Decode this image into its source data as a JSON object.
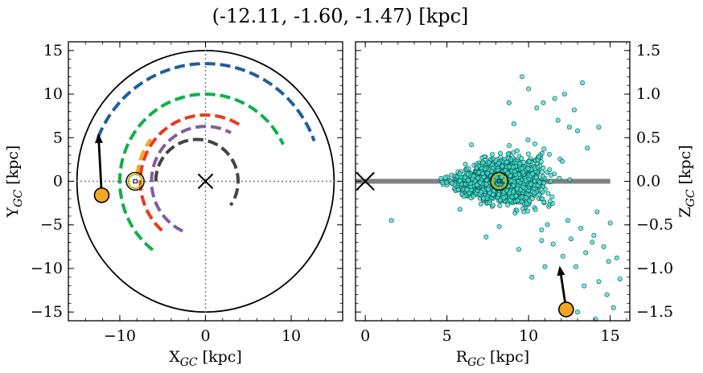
{
  "title": "(-12.11, -1.60, -1.47) [kpc]",
  "colors": {
    "blue": "#1f5f9e",
    "green": "#0fb04a",
    "orange": "#f5a623",
    "red": "#e8391a",
    "purple": "#7e5ea0",
    "dark": "#444444",
    "scatter_fill": "#40e0d0",
    "marker": "#f5a623"
  },
  "chart_data": [
    {
      "type": "line",
      "panel": "left",
      "xlabel_main": "X",
      "xlabel_sub": "GC",
      "xlabel_unit": " [kpc]",
      "ylabel_main": "Y",
      "ylabel_sub": "GC",
      "ylabel_unit": " [kpc]",
      "xlim": [
        -16,
        16
      ],
      "ylim": [
        -16,
        16
      ],
      "xticks": [
        -10,
        0,
        10
      ],
      "xtick_labels": [
        "−10",
        "0",
        "10"
      ],
      "yticks": [
        -15,
        -10,
        -5,
        0,
        5,
        10,
        15
      ],
      "ytick_labels": [
        "−15",
        "−10",
        "−5",
        "0",
        "5",
        "10",
        "15"
      ],
      "boundary_radius": 15,
      "crosshair_lines": {
        "x": 0,
        "y": 0
      },
      "center_marker": {
        "x": 0,
        "y": 0
      },
      "sun_marker": {
        "x": -8.2,
        "y": 0
      },
      "object": {
        "x": -12.11,
        "y": -1.6,
        "arrow_to": [
          -12.5,
          5.5
        ]
      },
      "arcs": [
        {
          "color_key": "blue",
          "radius": 13.5,
          "start_deg": 158,
          "end_deg": 20
        },
        {
          "color_key": "green",
          "radius": 10.0,
          "start_deg": 232,
          "end_deg": 25
        },
        {
          "color_key": "orange",
          "radius": 8.0,
          "start_deg": 175,
          "end_deg": 143
        },
        {
          "color_key": "red",
          "radius": 7.6,
          "start_deg": 228,
          "end_deg": 55
        },
        {
          "color_key": "purple",
          "radius": 6.3,
          "start_deg": 245,
          "end_deg": 62
        },
        {
          "color_key": "dark",
          "radius": 4.8,
          "start_deg": 180,
          "end_deg": -35,
          "cx": -1.0,
          "cy": 0
        }
      ]
    },
    {
      "type": "scatter",
      "panel": "right",
      "xlabel_main": "R",
      "xlabel_sub": "GC",
      "xlabel_unit": " [kpc]",
      "ylabel_main": "Z",
      "ylabel_sub": "GC",
      "ylabel_unit": " [kpc]",
      "xlim": [
        -0.6,
        16.2
      ],
      "ylim": [
        -1.6,
        1.6
      ],
      "xticks": [
        0,
        5,
        10,
        15
      ],
      "xtick_labels": [
        "0",
        "5",
        "10",
        "15"
      ],
      "yticks": [
        -1.5,
        -1.0,
        -0.5,
        0.0,
        0.5,
        1.0,
        1.5
      ],
      "ytick_labels": [
        "−1.5",
        "−1.0",
        "−0.5",
        "0.0",
        "0.5",
        "1.0",
        "1.5"
      ],
      "disk_line": {
        "x": [
          -0.6,
          15
        ],
        "y": 0
      },
      "center_marker": {
        "x": 0,
        "y": 0
      },
      "sun_marker": {
        "x": 8.2,
        "y": 0.0
      },
      "object": {
        "x": 12.3,
        "y": -1.47,
        "arrow_to": [
          11.9,
          -0.97
        ]
      },
      "outliers": [
        [
          9.6,
          1.2
        ],
        [
          13.3,
          1.13
        ],
        [
          10.0,
          1.06
        ],
        [
          12.2,
          1.0
        ],
        [
          11.6,
          0.95
        ],
        [
          8.8,
          0.9
        ],
        [
          10.5,
          0.84
        ],
        [
          12.8,
          0.82
        ],
        [
          14.3,
          0.62
        ],
        [
          13.6,
          0.38
        ],
        [
          1.6,
          -0.45
        ],
        [
          7.4,
          -0.64
        ],
        [
          13.2,
          -0.54
        ],
        [
          12.6,
          -0.66
        ],
        [
          14.0,
          -0.62
        ],
        [
          14.6,
          -0.75
        ],
        [
          13.5,
          -0.82
        ],
        [
          12.1,
          -0.86
        ],
        [
          14.9,
          -0.92
        ],
        [
          12.9,
          -0.98
        ],
        [
          10.2,
          -1.1
        ],
        [
          15.4,
          -0.88
        ],
        [
          11.0,
          -0.98
        ],
        [
          15.6,
          -1.12
        ],
        [
          14.3,
          -1.15
        ],
        [
          13.4,
          -1.2
        ],
        [
          14.8,
          -1.3
        ],
        [
          15.2,
          -1.45
        ],
        [
          13.0,
          -1.5
        ],
        [
          14.1,
          -1.58
        ],
        [
          9.4,
          -0.78
        ],
        [
          10.8,
          -0.68
        ],
        [
          11.5,
          -0.72
        ],
        [
          13.9,
          -0.7
        ],
        [
          8.2,
          -0.52
        ],
        [
          12.4,
          -0.45
        ],
        [
          14.2,
          -0.35
        ],
        [
          15.0,
          -0.48
        ],
        [
          5.8,
          -0.32
        ],
        [
          6.5,
          0.42
        ],
        [
          11.8,
          0.7
        ],
        [
          13.0,
          0.58
        ],
        [
          9.1,
          0.66
        ],
        [
          10.9,
          0.9
        ],
        [
          12.5,
          0.62
        ]
      ]
    }
  ]
}
